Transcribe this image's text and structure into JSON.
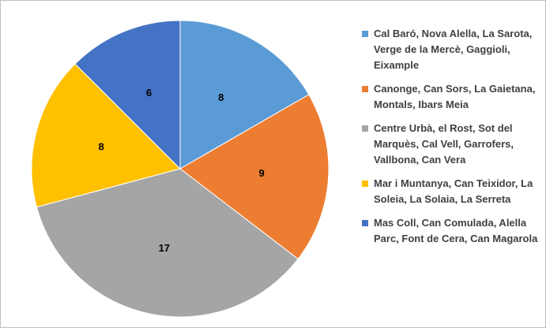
{
  "chart_data": {
    "type": "pie",
    "categories": [
      "Cal Baró, Nova Alella, La Sarota, Verge de la Mercè, Gaggioli, Eixample",
      "Canonge, Can Sors, La Gaietana, Montals, Ibars Meia",
      "Centre Urbà, el Rost, Sot del Marquès, Cal Vell, Garrofers, Vallbona, Can Vera",
      "Mar i Muntanya, Can Teixidor, La Soleia, La Solaia, La Serreta",
      "Mas Coll, Can Comulada, Alella Parc, Font de Cera, Can Magarola"
    ],
    "values": [
      8,
      9,
      17,
      8,
      6
    ],
    "colors": [
      "#5b9bd5",
      "#ed7d31",
      "#a5a5a5",
      "#ffc000",
      "#4472c4"
    ]
  }
}
